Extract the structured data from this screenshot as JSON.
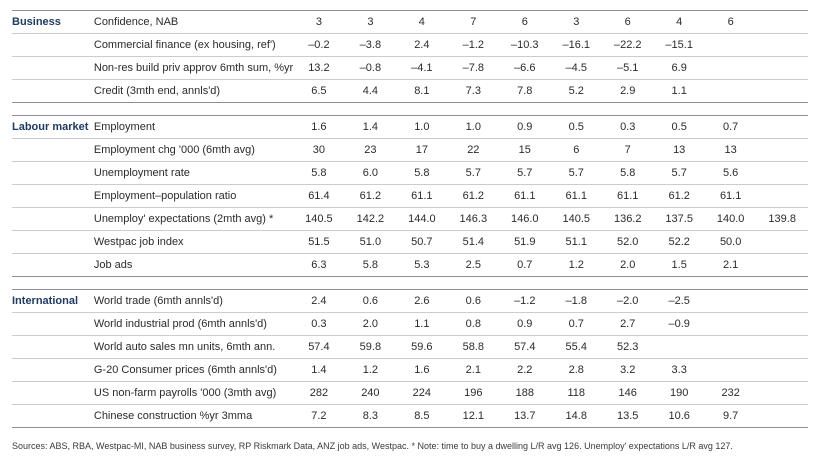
{
  "sections": [
    {
      "name": "Business",
      "rows": [
        {
          "label": "Confidence, NAB",
          "values": [
            "3",
            "3",
            "4",
            "7",
            "6",
            "3",
            "6",
            "4",
            "6",
            ""
          ]
        },
        {
          "label": "Commercial finance (ex housing, ref')",
          "values": [
            "–0.2",
            "–3.8",
            "2.4",
            "–1.2",
            "–10.3",
            "–16.1",
            "–22.2",
            "–15.1",
            "",
            ""
          ]
        },
        {
          "label": "Non-res build priv approv 6mth sum, %yr",
          "values": [
            "13.2",
            "–0.8",
            "–4.1",
            "–7.8",
            "–6.6",
            "–4.5",
            "–5.1",
            "6.9",
            "",
            ""
          ]
        },
        {
          "label": "Credit  (3mth end, annls'd)",
          "values": [
            "6.5",
            "4.4",
            "8.1",
            "7.3",
            "7.8",
            "5.2",
            "2.9",
            "1.1",
            "",
            ""
          ]
        }
      ]
    },
    {
      "name": "Labour market",
      "rows": [
        {
          "label": "Employment",
          "values": [
            "1.6",
            "1.4",
            "1.0",
            "1.0",
            "0.9",
            "0.5",
            "0.3",
            "0.5",
            "0.7",
            ""
          ]
        },
        {
          "label": "Employment chg '000 (6mth avg)",
          "values": [
            "30",
            "23",
            "17",
            "22",
            "15",
            "6",
            "7",
            "13",
            "13",
            ""
          ]
        },
        {
          "label": "Unemployment rate",
          "values": [
            "5.8",
            "6.0",
            "5.8",
            "5.7",
            "5.7",
            "5.7",
            "5.8",
            "5.7",
            "5.6",
            ""
          ]
        },
        {
          "label": "Employment–population ratio",
          "values": [
            "61.4",
            "61.2",
            "61.1",
            "61.2",
            "61.1",
            "61.1",
            "61.1",
            "61.2",
            "61.1",
            ""
          ]
        },
        {
          "label": "Unemploy' expectations (2mth avg) *",
          "values": [
            "140.5",
            "142.2",
            "144.0",
            "146.3",
            "146.0",
            "140.5",
            "136.2",
            "137.5",
            "140.0",
            "139.8"
          ]
        },
        {
          "label": "Westpac job index",
          "values": [
            "51.5",
            "51.0",
            "50.7",
            "51.4",
            "51.9",
            "51.1",
            "52.0",
            "52.2",
            "50.0",
            ""
          ]
        },
        {
          "label": "Job ads",
          "values": [
            "6.3",
            "5.8",
            "5.3",
            "2.5",
            "0.7",
            "1.2",
            "2.0",
            "1.5",
            "2.1",
            ""
          ]
        }
      ]
    },
    {
      "name": "International",
      "rows": [
        {
          "label": "World trade (6mth annls'd)",
          "values": [
            "2.4",
            "0.6",
            "2.6",
            "0.6",
            "–1.2",
            "–1.8",
            "–2.0",
            "–2.5",
            "",
            ""
          ]
        },
        {
          "label": "World industrial prod (6mth annls'd)",
          "values": [
            "0.3",
            "2.0",
            "1.1",
            "0.8",
            "0.9",
            "0.7",
            "2.7",
            "–0.9",
            "",
            ""
          ]
        },
        {
          "label": "World auto sales mn units, 6mth ann.",
          "values": [
            "57.4",
            "59.8",
            "59.6",
            "58.8",
            "57.4",
            "55.4",
            "52.3",
            "",
            "",
            ""
          ]
        },
        {
          "label": "G-20 Consumer prices (6mth annls'd)",
          "values": [
            "1.4",
            "1.2",
            "1.6",
            "2.1",
            "2.2",
            "2.8",
            "3.2",
            "3.3",
            "",
            ""
          ]
        },
        {
          "label": "US non-farm payrolls '000 (3mth avg)",
          "values": [
            "282",
            "240",
            "224",
            "196",
            "188",
            "118",
            "146",
            "190",
            "232",
            ""
          ]
        },
        {
          "label": "Chinese construction %yr 3mma",
          "values": [
            "7.2",
            "8.3",
            "8.5",
            "12.1",
            "13.7",
            "14.8",
            "13.5",
            "10.6",
            "9.7",
            ""
          ]
        }
      ]
    }
  ],
  "footer": "Sources: ABS, RBA, Westpac-MI, NAB business survey, RP Riskmark Data, ANZ job ads, Westpac.    * Note: time to buy a dwelling L/R avg 126. Unemploy' expectations L/R avg 127."
}
